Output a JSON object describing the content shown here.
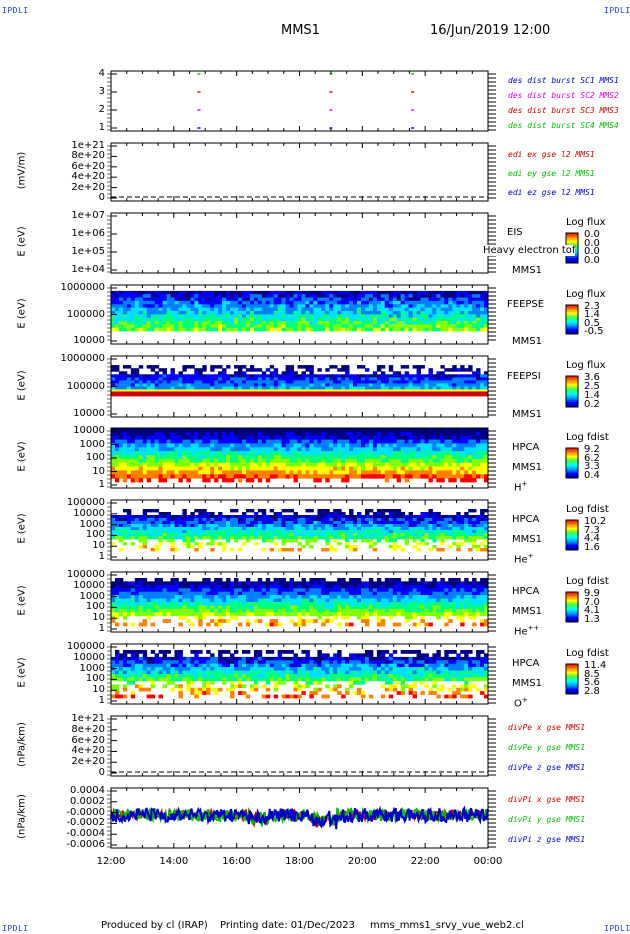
{
  "corners": {
    "label": "IPDLI"
  },
  "header": {
    "spacecraft": "MMS1",
    "datetime": "16/Jun/2019 12:00"
  },
  "footer": {
    "produced_by": "Produced by cl (IRAP)",
    "printing_date": "Printing date: 01/Dec/2023",
    "filename": "mms_mms1_srvy_vue_web2.cl"
  },
  "colors": {
    "blue": "#0000c8",
    "magenta": "#e000e0",
    "red": "#d00000",
    "green": "#00c000",
    "spectrogram_scale": [
      "#000080",
      "#0000ff",
      "#0080ff",
      "#00e0ff",
      "#00ff80",
      "#80ff00",
      "#ffff00",
      "#ff8000",
      "#ff0000"
    ]
  },
  "chart_data": [
    {
      "type": "scatter",
      "panel": "burst",
      "ylabel": "",
      "yticks": [
        "4",
        "3",
        "2",
        "1"
      ],
      "ylim": [
        0.5,
        4.5
      ],
      "legend": [
        {
          "label": "des dist burst SC1 MMS1",
          "color": "#0000c8"
        },
        {
          "label": "des dist burst SC2 MMS2",
          "color": "#e000e0"
        },
        {
          "label": "des dist burst SC3 MMS3",
          "color": "#d00000"
        },
        {
          "label": "des dist burst SC4 MMS4",
          "color": "#00c000"
        }
      ],
      "burst_times_hours": [
        14.8,
        19.0,
        21.6
      ]
    },
    {
      "type": "line",
      "panel": "edi",
      "ylabel": "(mV/m)",
      "yticks": [
        "1e+21",
        "8e+20",
        "6e+20",
        "4e+20",
        "2e+20",
        "0"
      ],
      "ylim": [
        0,
        1e+21
      ],
      "legend": [
        {
          "label": "edi ex gse l2 MMS1",
          "color": "#d00000"
        },
        {
          "label": "edi ey gse l2 MMS1",
          "color": "#00c000"
        },
        {
          "label": "edi ez gse l2 MMS1",
          "color": "#0000c8"
        }
      ]
    },
    {
      "type": "heatmap",
      "panel": "eis",
      "ylabel": "E (eV)",
      "yticks": [
        "1e+07",
        "1e+06",
        "1e+05",
        "1e+04"
      ],
      "instrument": "EIS",
      "overlay_text": "Heavy electron tof",
      "spacecraft": "MMS1",
      "colorbar_title": "Log flux",
      "colorbar_ticks": [
        "0.0",
        "0.0",
        "0.0",
        "0.0"
      ]
    },
    {
      "type": "heatmap",
      "panel": "feepse",
      "ylabel": "E (eV)",
      "yticks": [
        "1000000",
        "100000",
        "10000"
      ],
      "instrument": "FEEPSE",
      "spacecraft": "MMS1",
      "colorbar_title": "Log flux",
      "colorbar_ticks": [
        "2.3",
        "1.4",
        "0.5",
        "-0.5"
      ]
    },
    {
      "type": "heatmap",
      "panel": "feepsi",
      "ylabel": "E (eV)",
      "yticks": [
        "1000000",
        "100000",
        "10000"
      ],
      "instrument": "FEEPSI",
      "spacecraft": "MMS1",
      "colorbar_title": "Log flux",
      "colorbar_ticks": [
        "3.6",
        "2.5",
        "1.4",
        "0.2"
      ]
    },
    {
      "type": "heatmap",
      "panel": "hpca-h",
      "ylabel": "E (eV)",
      "yticks": [
        "10000",
        "1000",
        "100",
        "10",
        "1"
      ],
      "instrument": "HPCA",
      "spacecraft": "MMS1",
      "species": "H",
      "species_charge": "+",
      "colorbar_title": "Log fdist",
      "colorbar_ticks": [
        "9.2",
        "6.2",
        "3.3",
        "0.4"
      ]
    },
    {
      "type": "heatmap",
      "panel": "hpca-he",
      "ylabel": "E (eV)",
      "yticks": [
        "100000",
        "10000",
        "1000",
        "100",
        "10",
        "1"
      ],
      "instrument": "HPCA",
      "spacecraft": "MMS1",
      "species": "He",
      "species_charge": "+",
      "colorbar_title": "Log fdist",
      "colorbar_ticks": [
        "10.2",
        "7.3",
        "4.4",
        "1.6"
      ]
    },
    {
      "type": "heatmap",
      "panel": "hpca-hepp",
      "ylabel": "E (eV)",
      "yticks": [
        "100000",
        "10000",
        "1000",
        "100",
        "10",
        "1"
      ],
      "instrument": "HPCA",
      "spacecraft": "MMS1",
      "species": "He",
      "species_charge": "++",
      "colorbar_title": "Log fdist",
      "colorbar_ticks": [
        "9.9",
        "7.0",
        "4.1",
        "1.3"
      ]
    },
    {
      "type": "heatmap",
      "panel": "hpca-o",
      "ylabel": "E (eV)",
      "yticks": [
        "100000",
        "10000",
        "1000",
        "100",
        "10",
        "1"
      ],
      "instrument": "HPCA",
      "spacecraft": "MMS1",
      "species": "O",
      "species_charge": "+",
      "colorbar_title": "Log fdist",
      "colorbar_ticks": [
        "11.4",
        "8.5",
        "5.6",
        "2.8"
      ]
    },
    {
      "type": "line",
      "panel": "divpe",
      "ylabel": "(nPa/km)",
      "yticks": [
        "1e+21",
        "8e+20",
        "6e+20",
        "4e+20",
        "2e+20",
        "0"
      ],
      "ylim": [
        0,
        1e+21
      ],
      "legend": [
        {
          "label": "divPe x gse MMS1",
          "color": "#d00000"
        },
        {
          "label": "divPe y gse MMS1",
          "color": "#00c000"
        },
        {
          "label": "divPe z gse MMS1",
          "color": "#0000c8"
        }
      ]
    },
    {
      "type": "line",
      "panel": "divpi",
      "ylabel": "(nPa/km)",
      "yticks": [
        "0.0004",
        "0.0002",
        "-0.0000",
        "-0.0002",
        "-0.0004",
        "-0.0006"
      ],
      "ylim": [
        -0.0007,
        0.0005
      ],
      "legend": [
        {
          "label": "divPi x gse MMS1",
          "color": "#d00000"
        },
        {
          "label": "divPi y gse MMS1",
          "color": "#00c000"
        },
        {
          "label": "divPi z gse MMS1",
          "color": "#0000c8"
        }
      ],
      "xticks": [
        "12:00",
        "14:00",
        "16:00",
        "18:00",
        "20:00",
        "22:00",
        "00:00"
      ],
      "xlim_hours": [
        12,
        24
      ]
    }
  ]
}
